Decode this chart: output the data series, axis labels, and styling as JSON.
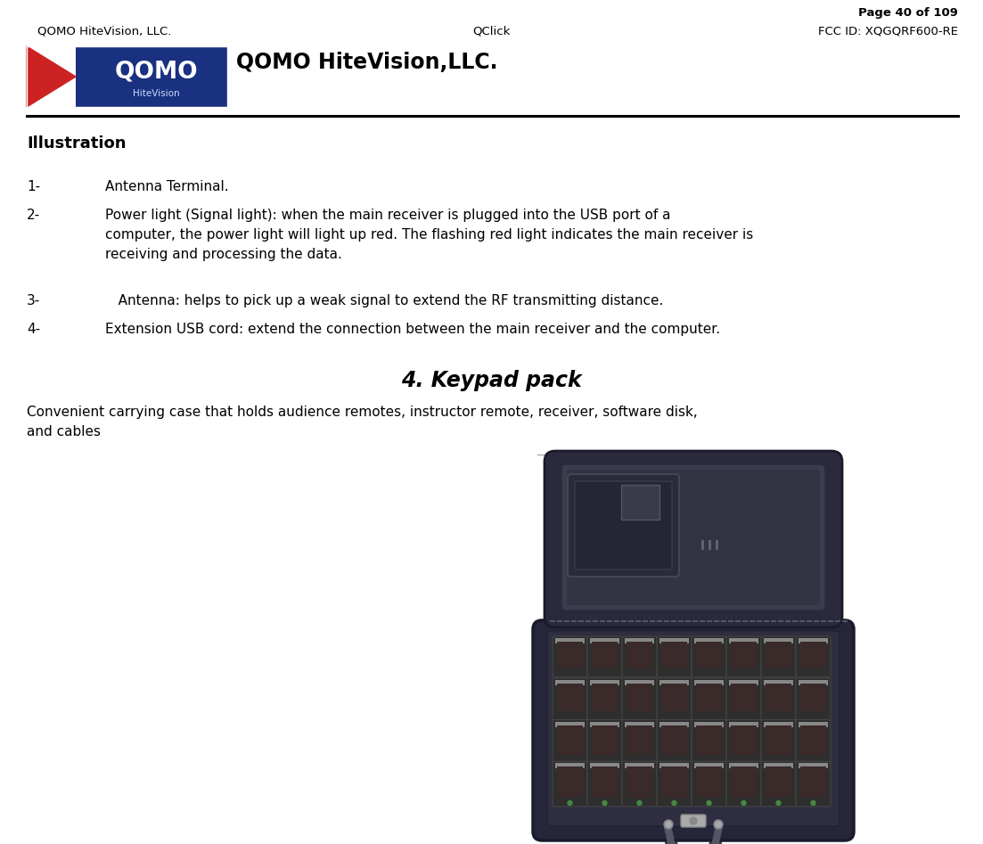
{
  "page_info": "Page 40 of 109",
  "header_left": "QOMO HiteVision, LLC.",
  "header_center": "QClick",
  "header_right": "FCC ID: XQGQRF600-RE",
  "company_title": "QOMO HiteVision,LLC.",
  "section_title": "Illustration",
  "item1_num": "1-",
  "item1_text": "Antenna Terminal.",
  "item2_num": "2-",
  "item2_line1": "Power light (Signal light): when the main receiver is plugged into the USB port of a",
  "item2_line2": "computer, the power light will light up red. The flashing red light indicates the main receiver is",
  "item2_line3": "receiving and processing the data.",
  "item3_num": "3-",
  "item3_text": "   Antenna: helps to pick up a weak signal to extend the RF transmitting distance.",
  "item4_num": "4-",
  "item4_text": "Extension USB cord: extend the connection between the main receiver and the computer.",
  "section2_title": "4. Keypad pack",
  "section2_line1": "Convenient carrying case that holds audience remotes, instructor remote, receiver, software disk,",
  "section2_line2": "and cables",
  "bg_color": "#ffffff",
  "text_color": "#000000",
  "line_color_sep": "#aaaaaa",
  "logo_red": "#cc2222",
  "logo_blue": "#1a3080",
  "logo_bg": "#1a3080",
  "bag_dark": "#2d2d3d",
  "bag_mid": "#3d3d4d",
  "bag_light": "#555566",
  "bag_inner": "#3a3a4a",
  "bag_zipper": "#888899",
  "bag_remote_dark": "#333333",
  "bag_remote_mid": "#888888",
  "bag_remote_light": "#aaaaaa",
  "bag_green": "#448844",
  "bag_handle": "#444454",
  "bag_clasp": "#aaaaaa",
  "header_fontsize": 9.5,
  "page_fontsize": 9.5,
  "title_fontsize": 17,
  "body_fontsize": 11,
  "illus_fontsize": 13,
  "section2_fontsize": 17
}
